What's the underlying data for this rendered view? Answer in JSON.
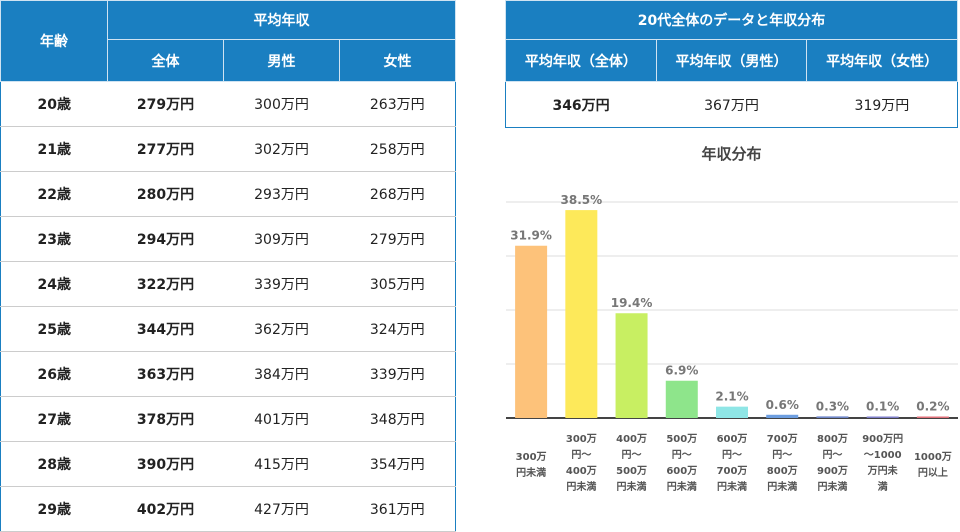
{
  "left_table": {
    "age_header": "年齢",
    "group_header": "平均年収",
    "sub_headers": [
      "全体",
      "男性",
      "女性"
    ],
    "rows": [
      [
        "20歳",
        "279万円",
        "300万円",
        "263万円"
      ],
      [
        "21歳",
        "277万円",
        "302万円",
        "258万円"
      ],
      [
        "22歳",
        "280万円",
        "293万円",
        "268万円"
      ],
      [
        "23歳",
        "294万円",
        "309万円",
        "279万円"
      ],
      [
        "24歳",
        "322万円",
        "339万円",
        "305万円"
      ],
      [
        "25歳",
        "344万円",
        "362万円",
        "324万円"
      ],
      [
        "26歳",
        "363万円",
        "384万円",
        "339万円"
      ],
      [
        "27歳",
        "378万円",
        "401万円",
        "348万円"
      ],
      [
        "28歳",
        "390万円",
        "415万円",
        "354万円"
      ],
      [
        "29歳",
        "402万円",
        "427万円",
        "361万円"
      ]
    ]
  },
  "right_table": {
    "title": "20代全体のデータと年収分布",
    "headers": [
      "平均年収（全体）",
      "平均年収（男性）",
      "平均年収（女性）"
    ],
    "values": [
      "346万円",
      "367万円",
      "319万円"
    ]
  },
  "chart_data": {
    "type": "bar",
    "title": "年収分布",
    "ylim": [
      0,
      40
    ],
    "grid": true,
    "categories": [
      [
        "300万",
        "円未満"
      ],
      [
        "300万",
        "円～",
        "400万",
        "円未満"
      ],
      [
        "400万",
        "円～",
        "500万",
        "円未満"
      ],
      [
        "500万",
        "円～",
        "600万",
        "円未満"
      ],
      [
        "600万",
        "円～",
        "700万",
        "円未満"
      ],
      [
        "700万",
        "円～",
        "800万",
        "円未満"
      ],
      [
        "800万",
        "円～",
        "900万",
        "円未満"
      ],
      [
        "900万円",
        "～1000",
        "万円未",
        "満"
      ],
      [
        "1000万",
        "円以上"
      ]
    ],
    "values": [
      31.9,
      38.5,
      19.4,
      6.9,
      2.1,
      0.6,
      0.3,
      0.1,
      0.2
    ],
    "labels": [
      "31.9%",
      "38.5%",
      "19.4%",
      "6.9%",
      "2.1%",
      "0.6%",
      "0.3%",
      "0.1%",
      "0.2%"
    ],
    "colors": [
      "#fdc27a",
      "#fde95a",
      "#c8ef62",
      "#8ee58b",
      "#8fe6e6",
      "#6d9ee0",
      "#6f86c8",
      "#7d7dc8",
      "#e0707a"
    ]
  }
}
